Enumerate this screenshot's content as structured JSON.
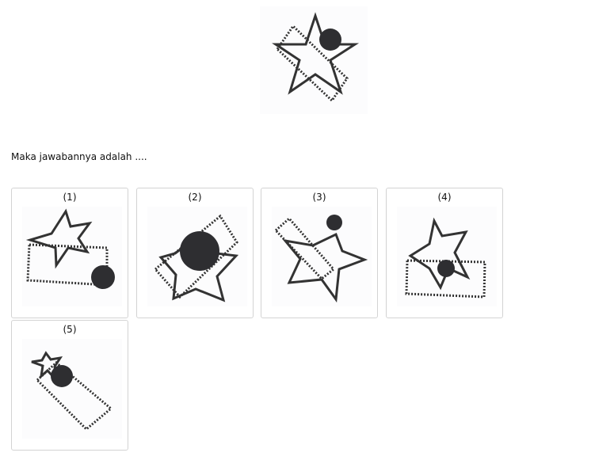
{
  "question": {
    "figure_icon": "star-rectangle-circle-figure",
    "prompt": "Maka jawabannya adalah ...."
  },
  "options": [
    {
      "label": "(1)",
      "icon": "answer-figure-1"
    },
    {
      "label": "(2)",
      "icon": "answer-figure-2"
    },
    {
      "label": "(3)",
      "icon": "answer-figure-3"
    },
    {
      "label": "(4)",
      "icon": "answer-figure-4"
    },
    {
      "label": "(5)",
      "icon": "answer-figure-5"
    }
  ],
  "colors": {
    "stroke": "#333333",
    "fill": "#2e2e31",
    "card_border": "#d3d3d3",
    "figure_bg": "#fcfcfd"
  }
}
